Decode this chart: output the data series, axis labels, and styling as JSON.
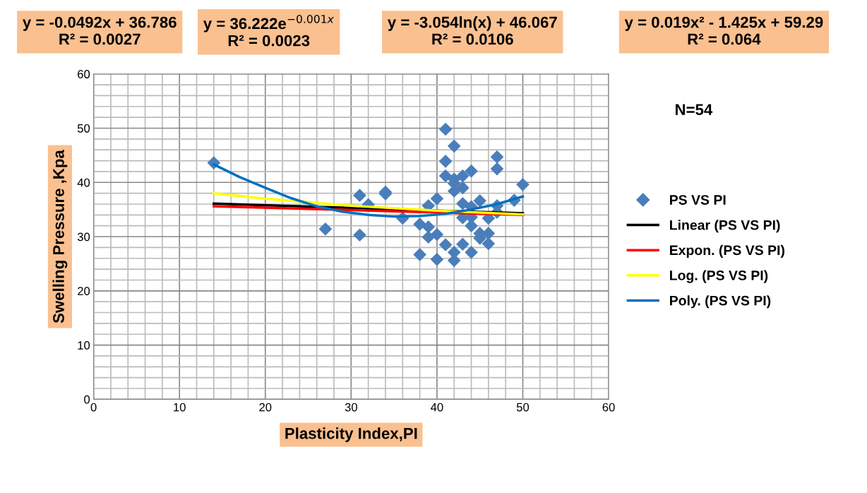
{
  "chart_data": {
    "type": "scatter",
    "xlabel": "Plasticity Index,PI",
    "ylabel": "Swelling Pressure ,Kpa",
    "xlim": [
      0,
      60
    ],
    "xticks": [
      0,
      10,
      20,
      30,
      40,
      50,
      60
    ],
    "ylim": [
      0,
      60
    ],
    "yticks": [
      0,
      10,
      20,
      30,
      40,
      50,
      60
    ],
    "grid": true,
    "legend": "right",
    "annotations": [
      "y = -0.0492x + 36.786\nR² = 0.0027",
      "y = 36.222e$^{−0.001x}$\nR² = 0.0023",
      "y = -3.054ln(x) + 46.067\nR² = 0.0106",
      "y = 0.019x² - 1.425x + 59.29\nR² = 0.064",
      "N=54"
    ],
    "series": [
      {
        "name": "PS VS PI",
        "marker": "diamond",
        "color": "#4a7ebb",
        "x": [
          14,
          27,
          31,
          31,
          32,
          34,
          34,
          41,
          42,
          41,
          47,
          47,
          41,
          43,
          44,
          42,
          42,
          43,
          42,
          50,
          40,
          39,
          43,
          45,
          47,
          49,
          44,
          36,
          43,
          44,
          46,
          47,
          38,
          39,
          44,
          40,
          39,
          45,
          46,
          45,
          46,
          41,
          43,
          38,
          42,
          44,
          40,
          42
        ],
        "values": [
          43.6,
          31.4,
          37.6,
          30.3,
          35.9,
          38.2,
          37.9,
          49.8,
          46.7,
          43.9,
          44.7,
          42.5,
          41.2,
          41.2,
          42.1,
          40.6,
          39.8,
          39.0,
          38.4,
          39.6,
          37.0,
          35.7,
          36.1,
          36.6,
          35.7,
          36.7,
          35.5,
          33.4,
          33.5,
          33.6,
          33.4,
          34.5,
          32.3,
          31.8,
          32.0,
          30.4,
          29.9,
          30.6,
          30.6,
          29.7,
          28.7,
          28.5,
          28.6,
          26.7,
          27.1,
          27.1,
          25.8,
          25.6
        ]
      },
      {
        "name": "Linear (PS VS PI)",
        "type": "line",
        "color": "#000000",
        "marker": "none",
        "x": [
          14,
          50
        ],
        "values": [
          36.1,
          34.3
        ]
      },
      {
        "name": "Expon. (PS VS PI)",
        "type": "line",
        "color": "#ff0000",
        "marker": "none",
        "x": [
          14,
          50
        ],
        "values": [
          35.6,
          34.0
        ]
      },
      {
        "name": "Log. (PS VS PI)",
        "type": "line",
        "color": "#ffff00",
        "marker": "none",
        "x": [
          14,
          20,
          30,
          40,
          50
        ],
        "values": [
          38.0,
          37.0,
          35.7,
          34.8,
          34.1
        ]
      },
      {
        "name": "Poly. (PS VS PI)",
        "type": "line",
        "color": "#0070c0",
        "marker": "none",
        "x": [
          14,
          17,
          20,
          23,
          26,
          29,
          32,
          35,
          38,
          41,
          44,
          47,
          50
        ],
        "values": [
          43.3,
          41.0,
          39.0,
          37.1,
          35.6,
          34.6,
          34.0,
          33.7,
          33.8,
          34.2,
          35.0,
          36.0,
          37.4
        ]
      }
    ]
  }
}
